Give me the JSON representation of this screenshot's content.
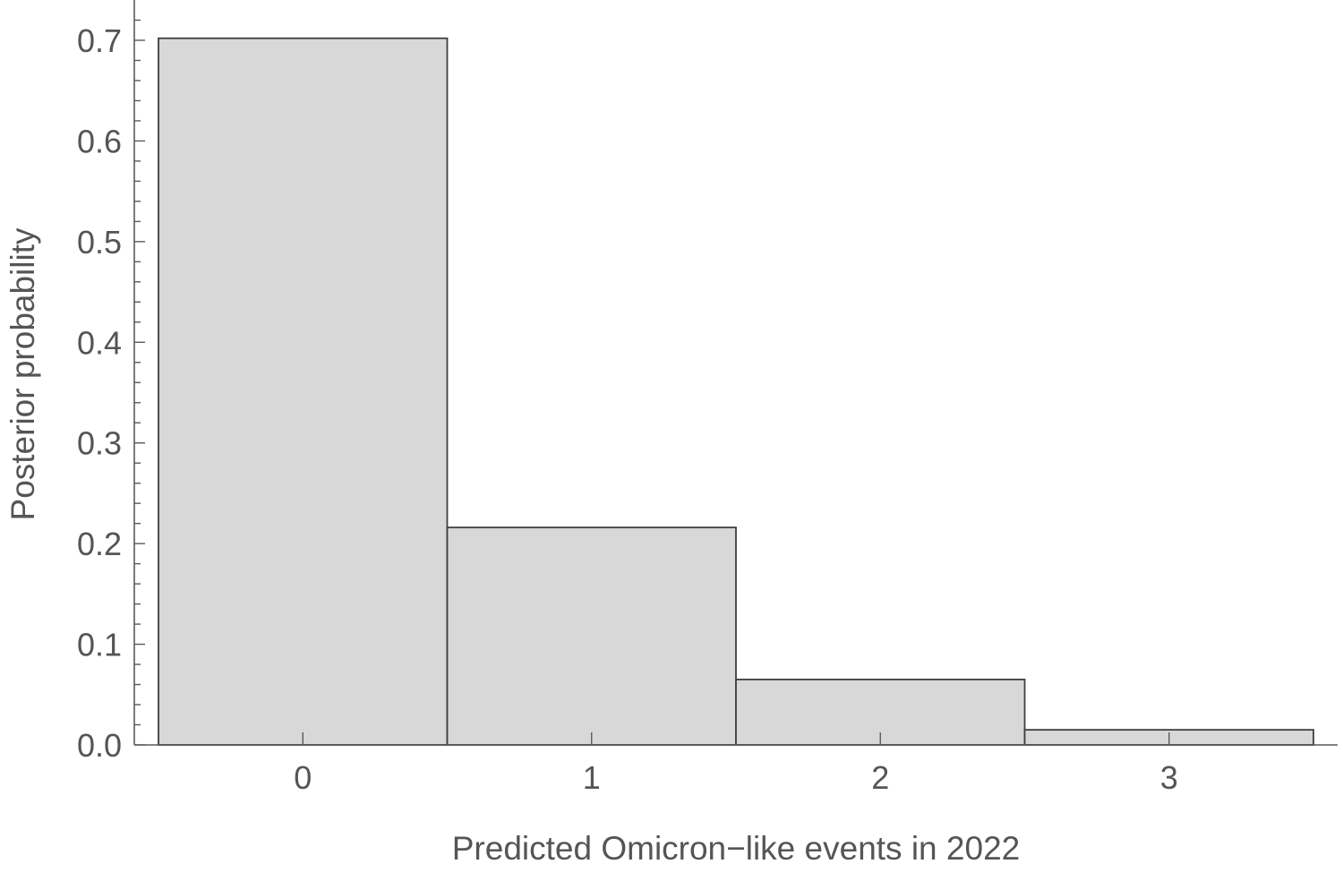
{
  "chart_data": {
    "type": "bar",
    "categories": [
      "0",
      "1",
      "2",
      "3"
    ],
    "values": [
      0.702,
      0.216,
      0.065,
      0.015
    ],
    "xlabel": "Predicted Omicron−like events in 2022",
    "ylabel": "Posterior probability",
    "ylim": [
      0,
      0.74
    ],
    "y_ticks": [
      "0.0",
      "0.1",
      "0.2",
      "0.3",
      "0.4",
      "0.5",
      "0.6",
      "0.7"
    ],
    "grid": false,
    "legend": "none",
    "colors": {
      "bar_fill": "#d8d8d8",
      "bar_stroke": "#3f3f3f",
      "axis": "#5a5a5a",
      "text": "#555555"
    }
  }
}
